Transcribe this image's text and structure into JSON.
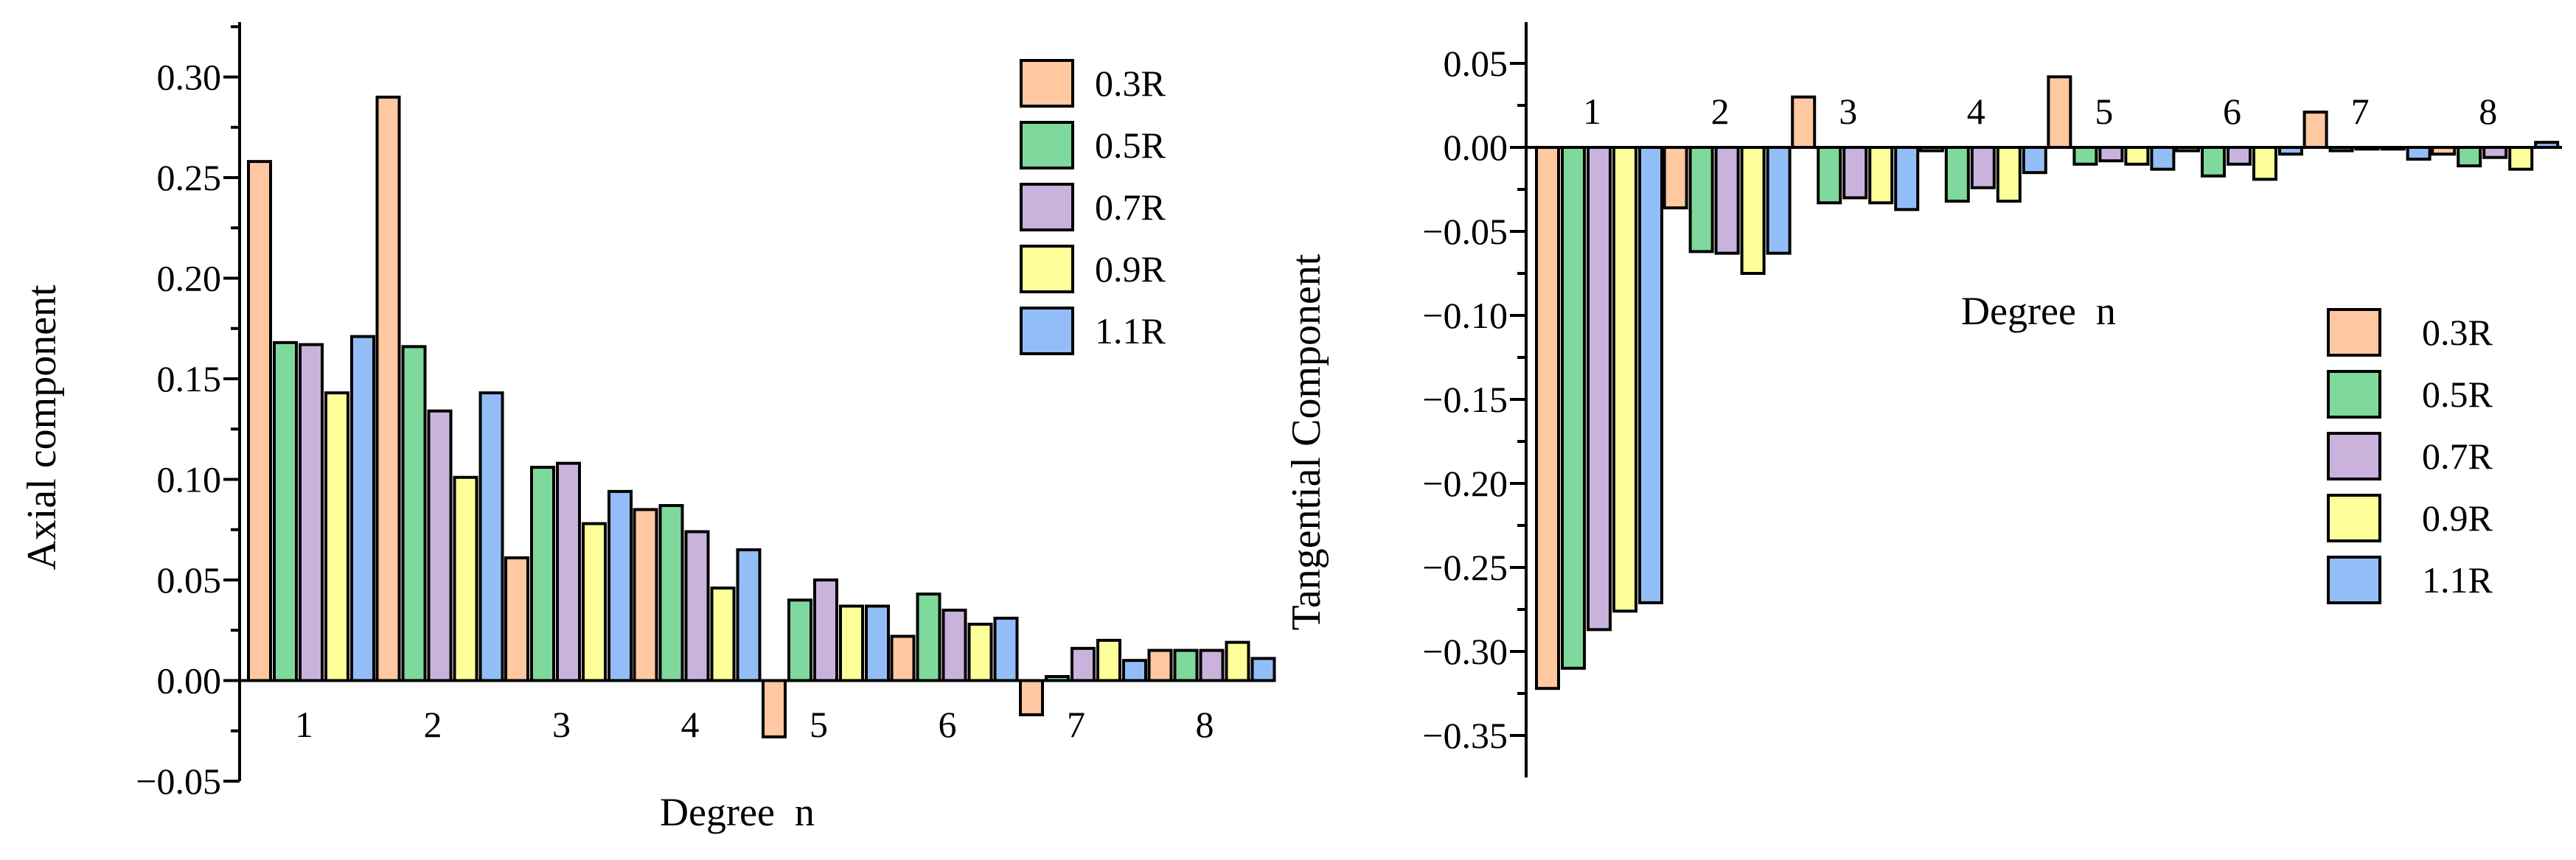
{
  "colors": {
    "0.3R": "#ffc8a0",
    "0.5R": "#7fd99c",
    "0.7R": "#c9b3dc",
    "0.9R": "#ffff9a",
    "1.1R": "#92bdf7",
    "stroke": "#000000"
  },
  "chart_data": [
    {
      "type": "bar",
      "xlabel": "Degree  n",
      "ylabel": "Axial component",
      "ylim": [
        -0.05,
        0.32
      ],
      "yticks": [
        -0.05,
        0.0,
        0.05,
        0.1,
        0.15,
        0.2,
        0.25,
        0.3
      ],
      "ytick_labels": [
        "−0.05",
        "0.00",
        "0.05",
        "0.10",
        "0.15",
        "0.20",
        "0.25",
        "0.30"
      ],
      "categories": [
        "1",
        "2",
        "3",
        "4",
        "5",
        "6",
        "7",
        "8"
      ],
      "legend_position": "top-right",
      "grid": false,
      "series": [
        {
          "name": "0.3R",
          "values": [
            0.258,
            0.29,
            0.061,
            0.085,
            -0.028,
            0.022,
            -0.017,
            0.015
          ]
        },
        {
          "name": "0.5R",
          "values": [
            0.168,
            0.166,
            0.106,
            0.087,
            0.04,
            0.043,
            0.002,
            0.015
          ]
        },
        {
          "name": "0.7R",
          "values": [
            0.167,
            0.134,
            0.108,
            0.074,
            0.05,
            0.035,
            0.016,
            0.015
          ]
        },
        {
          "name": "0.9R",
          "values": [
            0.143,
            0.101,
            0.078,
            0.046,
            0.037,
            0.028,
            0.02,
            0.019
          ]
        },
        {
          "name": "1.1R",
          "values": [
            0.171,
            0.143,
            0.094,
            0.065,
            0.037,
            0.031,
            0.01,
            0.011
          ]
        }
      ]
    },
    {
      "type": "bar",
      "xlabel": "Degree  n",
      "ylabel": "Tangential Component",
      "ylim": [
        -0.375,
        0.075
      ],
      "yticks": [
        -0.35,
        -0.3,
        -0.25,
        -0.2,
        -0.15,
        -0.1,
        -0.05,
        0.0,
        0.05
      ],
      "ytick_labels": [
        "−0.35",
        "−0.30",
        "−0.25",
        "−0.20",
        "−0.15",
        "−0.10",
        "−0.05",
        "0.00",
        "0.05"
      ],
      "categories": [
        "1",
        "2",
        "3",
        "4",
        "5",
        "6",
        "7",
        "8"
      ],
      "legend_position": "right",
      "grid": false,
      "series": [
        {
          "name": "0.3R",
          "values": [
            -0.322,
            -0.036,
            0.03,
            -0.002,
            0.042,
            -0.002,
            0.021,
            -0.004
          ]
        },
        {
          "name": "0.5R",
          "values": [
            -0.31,
            -0.062,
            -0.033,
            -0.032,
            -0.01,
            -0.017,
            -0.002,
            -0.011
          ]
        },
        {
          "name": "0.7R",
          "values": [
            -0.287,
            -0.063,
            -0.03,
            -0.024,
            -0.008,
            -0.01,
            -0.001,
            -0.006
          ]
        },
        {
          "name": "0.9R",
          "values": [
            -0.276,
            -0.075,
            -0.033,
            -0.032,
            -0.01,
            -0.019,
            -0.001,
            -0.013
          ]
        },
        {
          "name": "1.1R",
          "values": [
            -0.271,
            -0.063,
            -0.037,
            -0.015,
            -0.013,
            -0.004,
            -0.007,
            0.003
          ]
        }
      ]
    }
  ]
}
